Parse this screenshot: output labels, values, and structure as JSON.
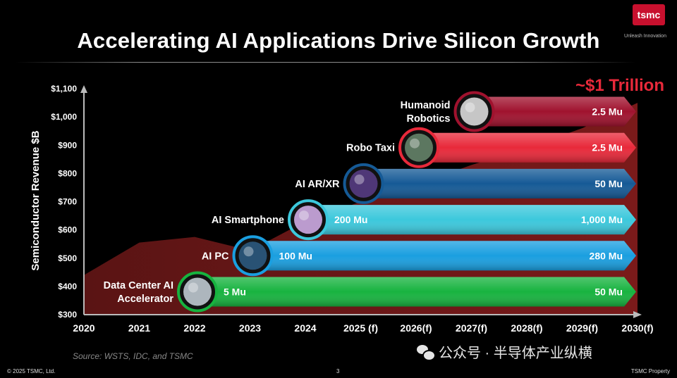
{
  "title": "Accelerating AI Applications Drive Silicon Growth",
  "logo": {
    "mark": "tsmc",
    "tagline": "Unleash Innovation"
  },
  "footer": {
    "copyright": "© 2025 TSMC, Ltd.",
    "page": "3",
    "property": "TSMC Property"
  },
  "source": "Source: WSTS, IDC, and TSMC",
  "watermark": "公众号 · 半导体产业纵横",
  "chart_data": {
    "type": "area",
    "ylabel": "Semiconductor Revenue $B",
    "ylim": [
      300,
      1100
    ],
    "yticks": [
      "$1,100",
      "$1,000",
      "$900",
      "$800",
      "$700",
      "$600",
      "$500",
      "$400",
      "$300"
    ],
    "ytick_values": [
      1100,
      1000,
      900,
      800,
      700,
      600,
      500,
      400,
      300
    ],
    "categories": [
      "2020",
      "2021",
      "2022",
      "2023",
      "2024",
      "2025 (f)",
      "2026(f)",
      "2027(f)",
      "2028(f)",
      "2029(f)",
      "2030(f)"
    ],
    "revenue": [
      440,
      555,
      575,
      527,
      630,
      700,
      760,
      830,
      890,
      960,
      1050
    ],
    "callout": "~$1 Trillion",
    "applications": [
      {
        "name": "Data Center AI Accelerator",
        "label_lines": [
          "Data Center AI",
          "Accelerator"
        ],
        "start_year": "2022",
        "start_units": "5 Mu",
        "end_units": "50 Mu",
        "color": "#17b33f",
        "icon": "server-icon"
      },
      {
        "name": "AI PC",
        "label_lines": [
          "AI PC"
        ],
        "start_year": "2023",
        "start_units": "100 Mu",
        "end_units": "280 Mu",
        "color": "#1a9fe0",
        "icon": "laptop-icon"
      },
      {
        "name": "AI Smartphone",
        "label_lines": [
          "AI Smartphone"
        ],
        "start_year": "2024",
        "start_units": "200 Mu",
        "end_units": "1,000 Mu",
        "color": "#3cc8dc",
        "icon": "smartphone-icon"
      },
      {
        "name": "AI AR/XR",
        "label_lines": [
          "AI AR/XR"
        ],
        "start_year": "2025 (f)",
        "start_units": "",
        "end_units": "50 Mu",
        "color": "#155a96",
        "icon": "vr-headset-icon"
      },
      {
        "name": "Robo Taxi",
        "label_lines": [
          "Robo Taxi"
        ],
        "start_year": "2026(f)",
        "start_units": "",
        "end_units": "2.5 Mu",
        "color": "#e8293a",
        "icon": "car-icon"
      },
      {
        "name": "Humanoid Robotics",
        "label_lines": [
          "Humanoid",
          "Robotics"
        ],
        "start_year": "2027(f)",
        "start_units": "",
        "end_units": "2.5 Mu",
        "color": "#a0122e",
        "icon": "robot-icon"
      }
    ]
  }
}
